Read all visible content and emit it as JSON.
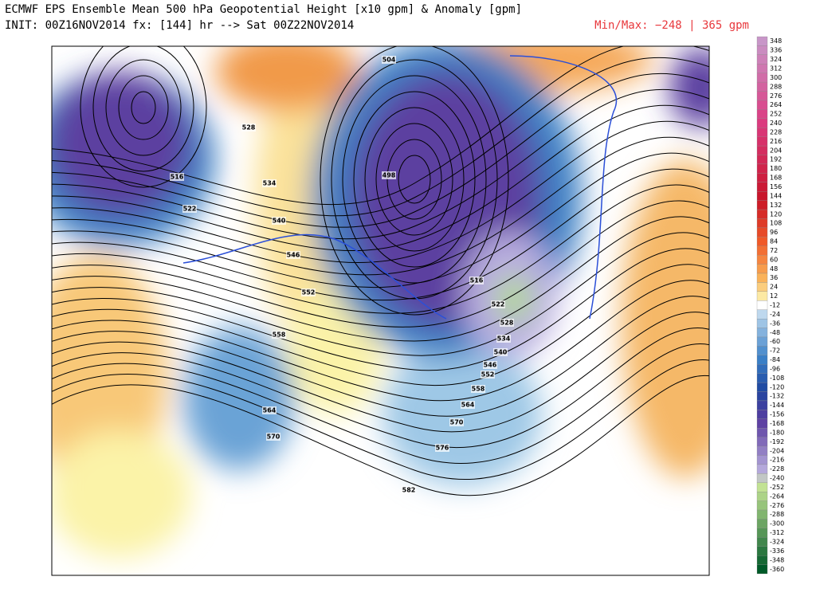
{
  "header": {
    "title": "ECMWF EPS Ensemble Mean 500 hPa Geopotential Height [x10 gpm] & Anomaly [gpm]",
    "init": "INIT: 00Z16NOV2014 fx: [144] hr --> Sat 00Z22NOV2014",
    "minmax": "Min/Max:  −248 |  365 gpm"
  },
  "colorbar": {
    "labels": [
      "348",
      "336",
      "324",
      "312",
      "300",
      "288",
      "276",
      "264",
      "252",
      "240",
      "228",
      "216",
      "204",
      "192",
      "180",
      "168",
      "156",
      "144",
      "132",
      "120",
      "108",
      "96",
      "84",
      "72",
      "60",
      "48",
      "36",
      "24",
      "12",
      "-12",
      "-24",
      "-36",
      "-48",
      "-60",
      "-72",
      "-84",
      "-96",
      "-108",
      "-120",
      "-132",
      "-144",
      "-156",
      "-168",
      "-180",
      "-192",
      "-204",
      "-216",
      "-228",
      "-240",
      "-252",
      "-264",
      "-276",
      "-288",
      "-300",
      "-312",
      "-324",
      "-336",
      "-348",
      "-360"
    ]
  },
  "contour_labels": [
    "504",
    "528",
    "516",
    "522",
    "534",
    "540",
    "546",
    "552",
    "558",
    "564",
    "570",
    "498",
    "516",
    "522",
    "528",
    "534",
    "540",
    "546",
    "552",
    "558",
    "564",
    "570",
    "576",
    "582"
  ]
}
